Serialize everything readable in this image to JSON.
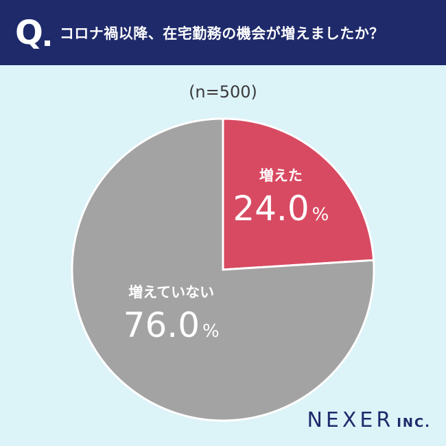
{
  "header": {
    "q_letter": "Q",
    "question": "コロナ禍以降、在宅勤務の機会が増えましたか？"
  },
  "sample_size": "(n=500)",
  "logo": {
    "main": "NEXER",
    "sub": "INC."
  },
  "colors": {
    "header_bg": "#1f2a6b",
    "background": "#dcf3f8",
    "increased": "#d84a62",
    "not_increased": "#a3a3a3"
  },
  "chart_data": {
    "type": "pie",
    "slices": [
      {
        "label": "増えた",
        "value": 24.0,
        "value_label": "24.0",
        "unit": "%",
        "color": "#d84a62"
      },
      {
        "label": "増えていない",
        "value": 76.0,
        "value_label": "76.0",
        "unit": "%",
        "color": "#a3a3a3"
      }
    ]
  }
}
